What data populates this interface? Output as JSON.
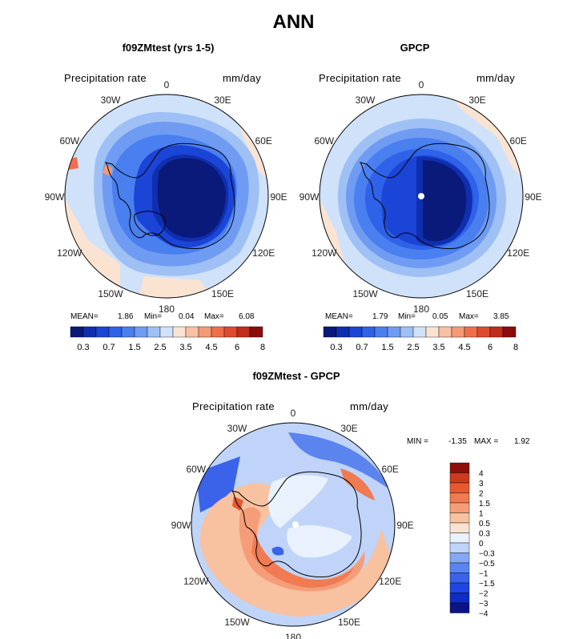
{
  "title": "ANN",
  "panels": [
    {
      "title": "f09ZMtest (yrs 1-5)",
      "variable": "Precipitation rate",
      "units": "mm/day",
      "stats": {
        "mean_label": "MEAN=",
        "mean": "1.86",
        "min_label": "Min=",
        "min": "0.04",
        "max_label": "Max=",
        "max": "6.08"
      }
    },
    {
      "title": "GPCP",
      "variable": "Precipitation rate",
      "units": "mm/day",
      "stats": {
        "mean_label": "MEAN=",
        "mean": "1.79",
        "min_label": "Min=",
        "min": "0.05",
        "max_label": "Max=",
        "max": "3.85"
      }
    },
    {
      "title": "f09ZMtest - GPCP",
      "variable": "Precipitation rate",
      "units": "mm/day",
      "minmax": {
        "min_label": "MIN =",
        "min": "-1.35",
        "max_label": "MAX =",
        "max": "1.92"
      }
    }
  ],
  "lon_labels": [
    "0",
    "30E",
    "60E",
    "90E",
    "120E",
    "150E",
    "180",
    "150W",
    "120W",
    "90W",
    "60W",
    "30W"
  ],
  "precip_colorbar": {
    "colors": [
      "#0a1a7a",
      "#0f2fb0",
      "#1b45d6",
      "#2e62e8",
      "#4a7ff0",
      "#6f9cf2",
      "#9fc0f5",
      "#cfe2fa",
      "#fbe3d2",
      "#f8c1a4",
      "#f59a77",
      "#ef6f4c",
      "#e04a2e",
      "#c22c1c",
      "#8c0c0c"
    ],
    "labels": [
      "0.3",
      "0.7",
      "1.5",
      "2.5",
      "3.5",
      "4.5",
      "6",
      "8"
    ]
  },
  "diff_colorbar": {
    "colors": [
      "#0a1487",
      "#0f2cc4",
      "#1f45e3",
      "#3a63ea",
      "#5b84ee",
      "#86a8f3",
      "#bfd4f8",
      "#e8f1fc",
      "#fbe1cf",
      "#f8c1a0",
      "#f59d78",
      "#f07a51",
      "#e55a32",
      "#cc3b1c",
      "#8c0f0a"
    ],
    "labels": [
      "4",
      "3",
      "2",
      "1.5",
      "1",
      "0.5",
      "0.3",
      "0",
      "−0.3",
      "−0.5",
      "−1",
      "−1.5",
      "−2",
      "−3",
      "−4"
    ]
  }
}
